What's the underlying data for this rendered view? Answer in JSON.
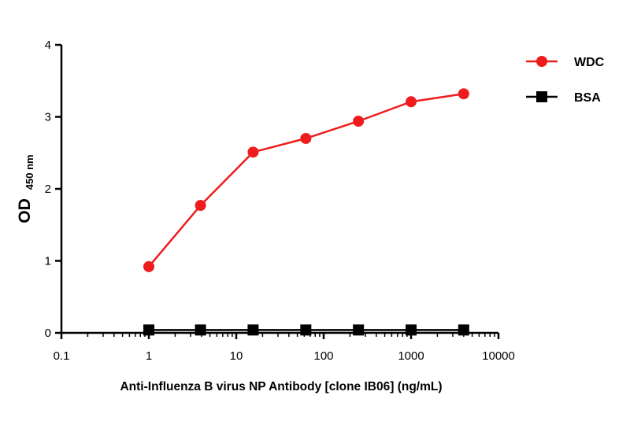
{
  "chart_data": {
    "type": "line",
    "x_scale": "log",
    "xlim": [
      0.1,
      10000
    ],
    "ylim": [
      0,
      4
    ],
    "xticks": [
      0.1,
      1,
      10,
      100,
      1000,
      10000
    ],
    "xtick_labels": [
      "0.1",
      "1",
      "10",
      "100",
      "1000",
      "10000"
    ],
    "yticks": [
      0,
      1,
      2,
      3,
      4
    ],
    "ytick_labels": [
      "0",
      "1",
      "2",
      "3",
      "4"
    ],
    "xlabel": "Anti-Influenza B virus NP Antibody [clone IB06]  (ng/mL)",
    "ylabel_main": "OD",
    "ylabel_sub": "450 nm",
    "grid": false,
    "legend_position": "top-right",
    "series": [
      {
        "name": "WDC",
        "color": "#ee1c1c",
        "marker": "circle",
        "x": [
          1,
          3.9,
          15.6,
          62.5,
          250,
          1000,
          4000
        ],
        "y": [
          0.92,
          1.77,
          2.51,
          2.7,
          2.94,
          3.21,
          3.32
        ]
      },
      {
        "name": "BSA",
        "color": "#000000",
        "marker": "square",
        "x": [
          1,
          3.9,
          15.6,
          62.5,
          250,
          1000,
          4000
        ],
        "y": [
          0.04,
          0.04,
          0.04,
          0.04,
          0.04,
          0.04,
          0.04
        ]
      }
    ]
  }
}
